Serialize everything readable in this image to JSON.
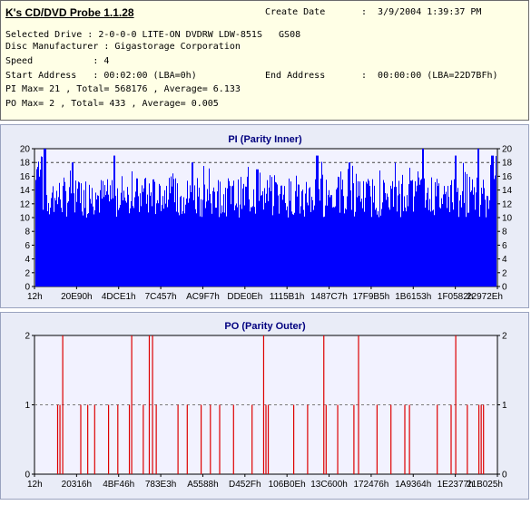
{
  "header": {
    "app_title": "K's CD/DVD Probe 1.1.28",
    "create_date_label": "Create Date",
    "create_date_value": ":  3/9/2004 1:39:37 PM",
    "selected_drive": "Selected Drive : 2-0-0-0 LITE-ON DVDRW LDW-851S   GS08",
    "disc_manufacturer": "Disc Manufacturer : Gigastorage Corporation",
    "speed": "Speed           : 4",
    "start_address": "Start Address   : 00:02:00 (LBA=0h)",
    "end_address_label": "End Address",
    "end_address_value": ":  00:00:00 (LBA=22D7BFh)",
    "pi_stats": "PI Max= 21 , Total= 568176 , Average= 6.133",
    "po_stats": "PO Max= 2 , Total= 433 , Average= 0.005"
  },
  "colors": {
    "pi_fill": "#0000ff",
    "po_bar": "#dd0000",
    "plot_bg": "#f2f2ff",
    "panel_bg": "#e9ecf7",
    "title_color": "#00007f"
  },
  "chart_data": [
    {
      "type": "bar",
      "title": "PI (Parity Inner)",
      "ylim": [
        0,
        20
      ],
      "yticks": [
        0,
        2,
        4,
        6,
        8,
        10,
        12,
        14,
        16,
        18,
        20
      ],
      "xtick_labels": [
        "12h",
        "20E90h",
        "4DCE1h",
        "7C457h",
        "AC9F7h",
        "DDE0Eh",
        "1115B1h",
        "1487C7h",
        "17F9B5h",
        "1B6153h",
        "1F0582h",
        "22972Eh"
      ],
      "reference_lines": [
        18
      ],
      "grid": true,
      "series_note": "dense distribution of PI errors per block across disc",
      "baseline_range": [
        10,
        16
      ],
      "spikes": [
        {
          "x": 0.02,
          "value": 20
        },
        {
          "x": 0.08,
          "value": 18
        },
        {
          "x": 0.17,
          "value": 19
        },
        {
          "x": 0.34,
          "value": 18
        },
        {
          "x": 0.48,
          "value": 17
        },
        {
          "x": 0.61,
          "value": 19
        },
        {
          "x": 0.68,
          "value": 18
        },
        {
          "x": 0.84,
          "value": 20
        },
        {
          "x": 0.91,
          "value": 19
        },
        {
          "x": 0.96,
          "value": 20
        },
        {
          "x": 0.99,
          "value": 19
        }
      ]
    },
    {
      "type": "bar",
      "title": "PO (Parity Outer)",
      "ylim": [
        0,
        2
      ],
      "yticks": [
        0,
        1,
        2
      ],
      "xtick_labels": [
        "12h",
        "20316h",
        "4BF46h",
        "783E3h",
        "A5588h",
        "D452Fh",
        "106B0Eh",
        "13C600h",
        "172476h",
        "1A9364h",
        "1E2377h",
        "21B025h"
      ],
      "reference_lines": [
        1
      ],
      "grid": true,
      "events": [
        {
          "x": 0.05,
          "value": 1
        },
        {
          "x": 0.055,
          "value": 1
        },
        {
          "x": 0.061,
          "value": 2
        },
        {
          "x": 0.1,
          "value": 1
        },
        {
          "x": 0.115,
          "value": 1
        },
        {
          "x": 0.13,
          "value": 1
        },
        {
          "x": 0.16,
          "value": 1
        },
        {
          "x": 0.18,
          "value": 1
        },
        {
          "x": 0.205,
          "value": 1
        },
        {
          "x": 0.21,
          "value": 2
        },
        {
          "x": 0.235,
          "value": 1
        },
        {
          "x": 0.248,
          "value": 2
        },
        {
          "x": 0.255,
          "value": 2
        },
        {
          "x": 0.263,
          "value": 1
        },
        {
          "x": 0.31,
          "value": 1
        },
        {
          "x": 0.33,
          "value": 1
        },
        {
          "x": 0.36,
          "value": 1
        },
        {
          "x": 0.38,
          "value": 1
        },
        {
          "x": 0.4,
          "value": 1
        },
        {
          "x": 0.43,
          "value": 1
        },
        {
          "x": 0.47,
          "value": 1
        },
        {
          "x": 0.495,
          "value": 2
        },
        {
          "x": 0.5,
          "value": 1
        },
        {
          "x": 0.505,
          "value": 1
        },
        {
          "x": 0.56,
          "value": 1
        },
        {
          "x": 0.59,
          "value": 1
        },
        {
          "x": 0.625,
          "value": 2
        },
        {
          "x": 0.63,
          "value": 1
        },
        {
          "x": 0.655,
          "value": 1
        },
        {
          "x": 0.69,
          "value": 1
        },
        {
          "x": 0.7,
          "value": 2
        },
        {
          "x": 0.74,
          "value": 1
        },
        {
          "x": 0.77,
          "value": 1
        },
        {
          "x": 0.8,
          "value": 1
        },
        {
          "x": 0.81,
          "value": 1
        },
        {
          "x": 0.87,
          "value": 1
        },
        {
          "x": 0.9,
          "value": 1
        },
        {
          "x": 0.91,
          "value": 2
        },
        {
          "x": 0.935,
          "value": 1
        },
        {
          "x": 0.96,
          "value": 1
        },
        {
          "x": 0.965,
          "value": 1
        },
        {
          "x": 0.97,
          "value": 1
        }
      ]
    }
  ]
}
